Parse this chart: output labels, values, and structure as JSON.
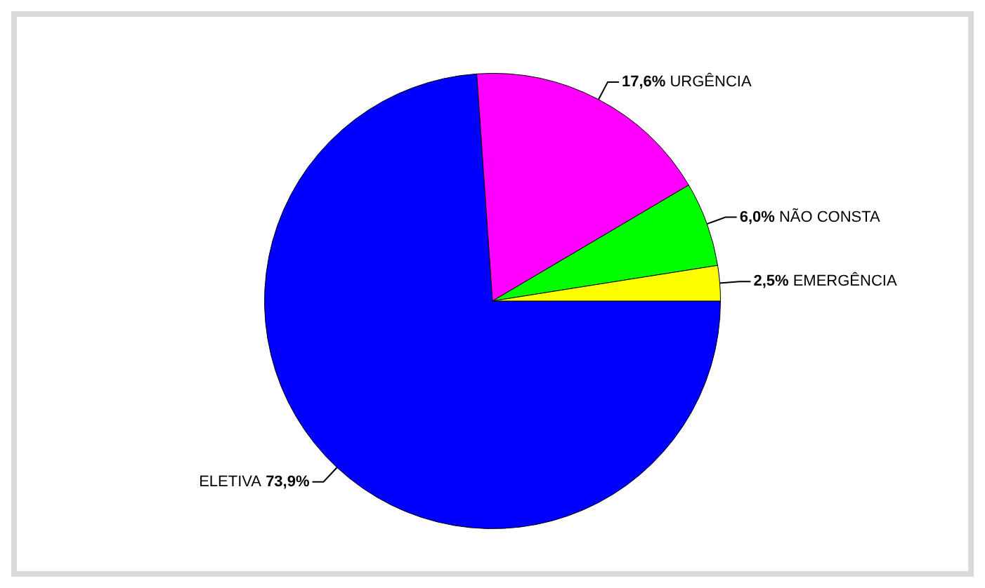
{
  "chart_data": {
    "type": "pie",
    "categories": [
      "ELETIVA",
      "URGÊNCIA",
      "NÃO CONSTA",
      "EMERGÊNCIA"
    ],
    "values": [
      73.9,
      17.6,
      6.0,
      2.5
    ],
    "colors": [
      "#0000ff",
      "#ff00ff",
      "#00ff00",
      "#ffff00"
    ],
    "value_labels": [
      "73,9%",
      "17,6%",
      "6,0%",
      "2,5%"
    ],
    "legend": false
  }
}
